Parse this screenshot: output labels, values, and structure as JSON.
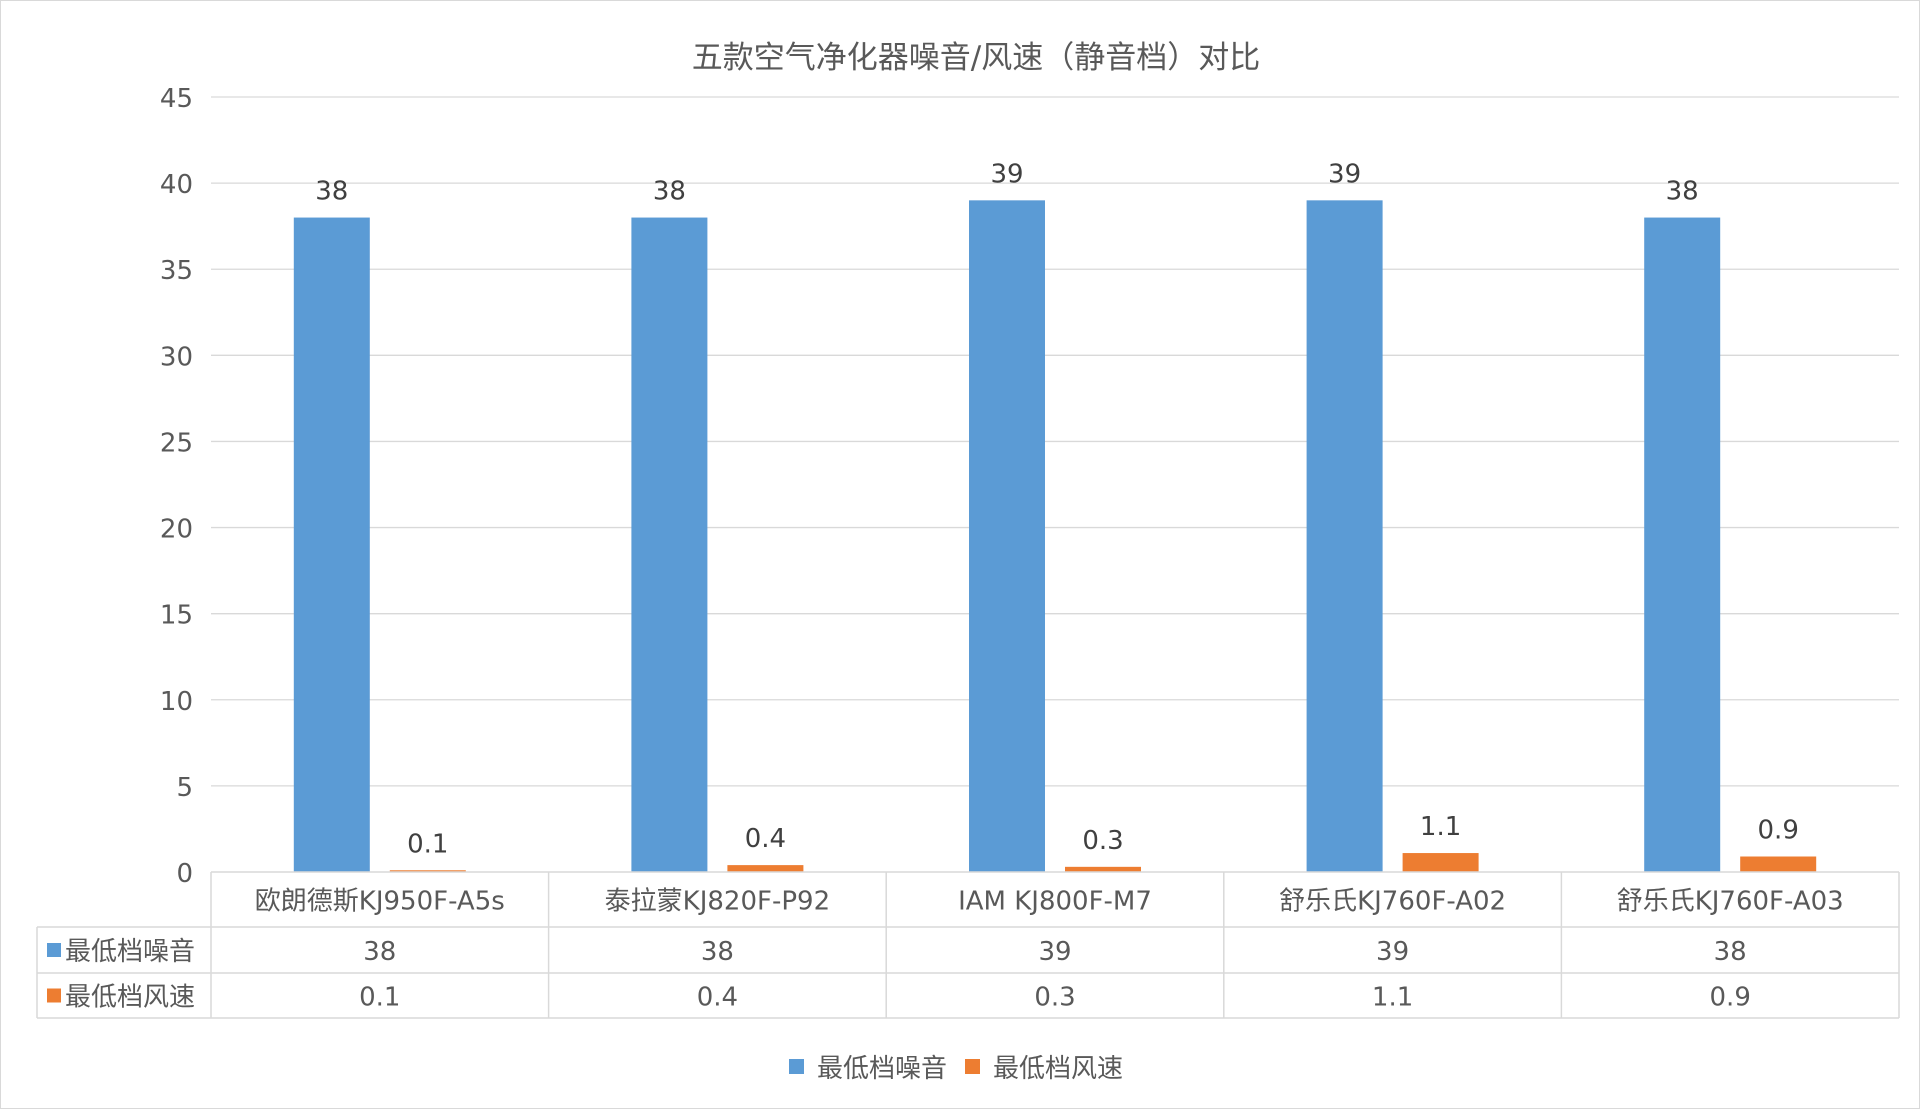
{
  "chart_data": {
    "type": "bar",
    "title": "五款空气净化器噪音/风速（静音档）对比",
    "categories": [
      "欧朗德斯KJ950F-A5s",
      "泰拉蒙KJ820F-P92",
      "IAM KJ800F-M7",
      "舒乐氏KJ760F-A02",
      "舒乐氏KJ760F-A03"
    ],
    "series": [
      {
        "name": "最低档噪音",
        "values": [
          38,
          38,
          39,
          39,
          38
        ],
        "color": "#5b9bd5"
      },
      {
        "name": "最低档风速",
        "values": [
          0.1,
          0.4,
          0.3,
          1.1,
          0.9
        ],
        "color": "#ed7d31"
      }
    ],
    "ylim": [
      0,
      45
    ],
    "yticks": [
      0,
      5,
      10,
      15,
      20,
      25,
      30,
      35,
      40,
      45
    ],
    "xlabel": "",
    "ylabel": "",
    "grid": true,
    "data_labels": true,
    "data_table": true,
    "legend": "bottom"
  }
}
